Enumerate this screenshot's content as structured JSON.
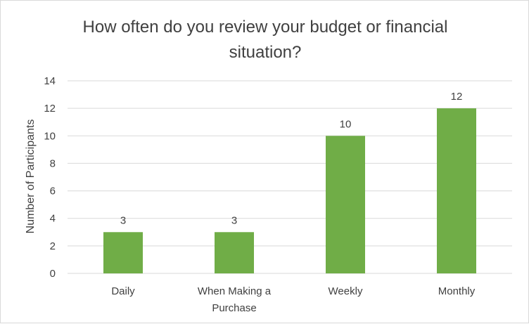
{
  "chart_data": {
    "type": "bar",
    "title": "How often do you review your budget or financial\nsituation?",
    "xlabel": "",
    "ylabel": "Number of Participants",
    "categories": [
      "Daily",
      "When Making a\nPurchase",
      "Weekly",
      "Monthly"
    ],
    "values": [
      3,
      3,
      10,
      12
    ],
    "ylim": [
      0,
      14
    ],
    "yticks": [
      0,
      2,
      4,
      6,
      8,
      10,
      12,
      14
    ],
    "grid": true,
    "legend": "none",
    "bar_color": "#70ad47",
    "gridline_color": "#d9d9d9",
    "text_color": "#404040"
  }
}
